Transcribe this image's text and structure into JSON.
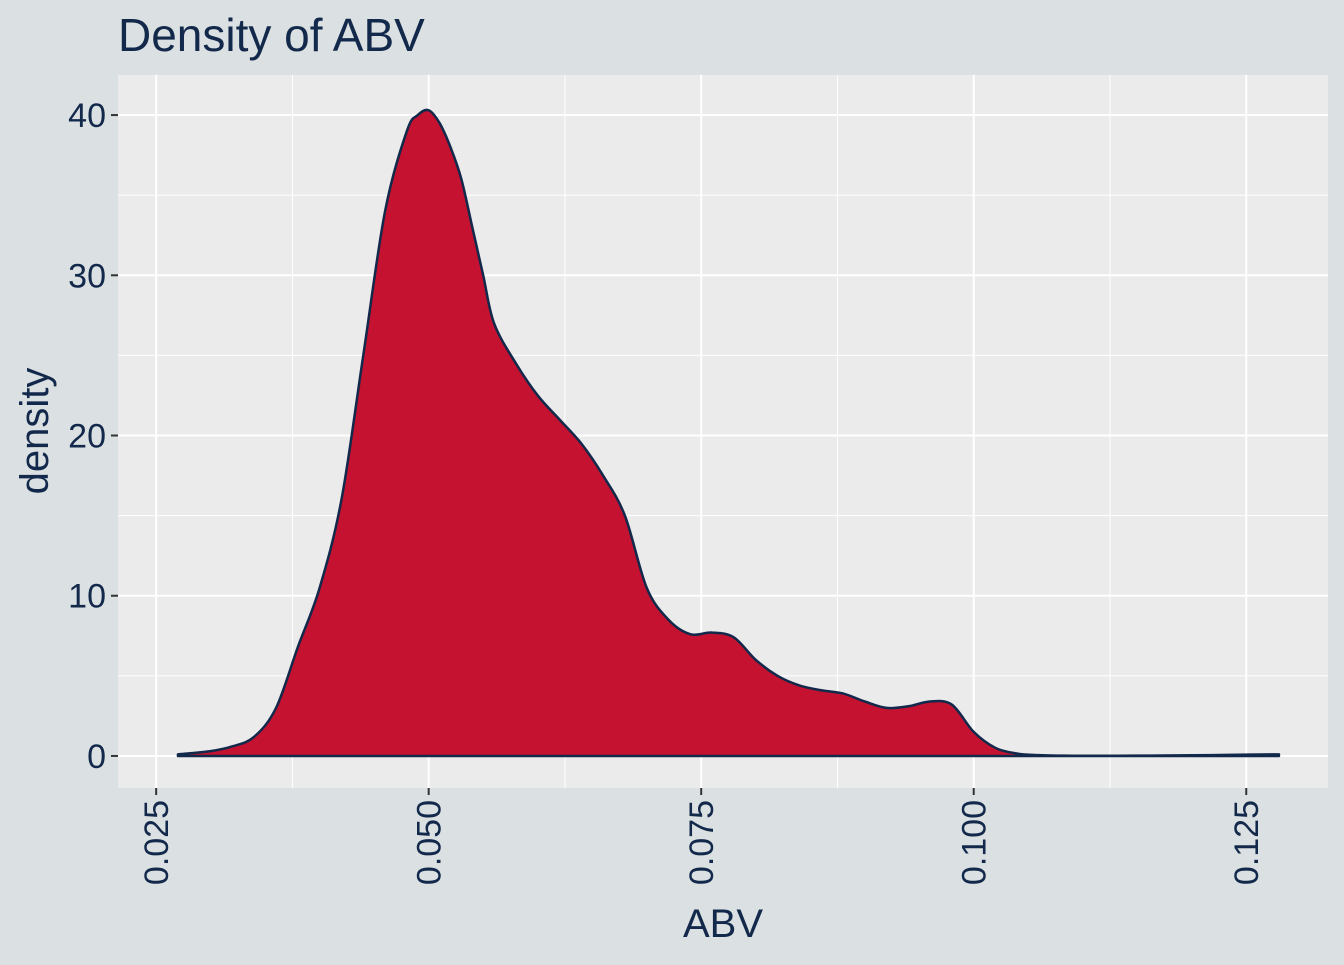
{
  "chart_data": {
    "type": "area",
    "title": "Density of ABV",
    "xlabel": "ABV",
    "ylabel": "density",
    "xlim": [
      0.0215,
      0.1325
    ],
    "ylim": [
      -2.0,
      42.5
    ],
    "xticks": [
      0.025,
      0.05,
      0.075,
      0.1,
      0.125
    ],
    "xtick_labels": [
      "0.025",
      "0.050",
      "0.075",
      "0.100",
      "0.125"
    ],
    "yticks": [
      0,
      10,
      20,
      30,
      40
    ],
    "ytick_labels": [
      "0",
      "10",
      "20",
      "30",
      "40"
    ],
    "grid": true,
    "series": [
      {
        "fill_color": "#c41230",
        "line_color": "#13294b",
        "x": [
          0.027,
          0.03,
          0.032,
          0.034,
          0.036,
          0.038,
          0.04,
          0.042,
          0.044,
          0.046,
          0.048,
          0.049,
          0.05,
          0.051,
          0.052,
          0.053,
          0.054,
          0.055,
          0.056,
          0.058,
          0.06,
          0.062,
          0.064,
          0.066,
          0.068,
          0.07,
          0.072,
          0.074,
          0.076,
          0.078,
          0.08,
          0.082,
          0.084,
          0.086,
          0.088,
          0.09,
          0.092,
          0.094,
          0.096,
          0.098,
          0.1,
          0.102,
          0.104,
          0.106,
          0.108,
          0.11,
          0.115,
          0.12,
          0.125,
          0.128
        ],
        "y": [
          0.1,
          0.3,
          0.6,
          1.2,
          3.0,
          6.8,
          10.5,
          16.0,
          25.0,
          34.0,
          39.0,
          40.0,
          40.3,
          39.5,
          38.0,
          36.0,
          33.0,
          30.0,
          27.0,
          24.5,
          22.5,
          21.0,
          19.5,
          17.5,
          15.0,
          10.5,
          8.5,
          7.6,
          7.7,
          7.4,
          6.0,
          5.0,
          4.4,
          4.1,
          3.9,
          3.4,
          3.0,
          3.1,
          3.4,
          3.2,
          1.5,
          0.5,
          0.15,
          0.05,
          0.02,
          0.01,
          0.02,
          0.04,
          0.08,
          0.1
        ]
      }
    ]
  }
}
